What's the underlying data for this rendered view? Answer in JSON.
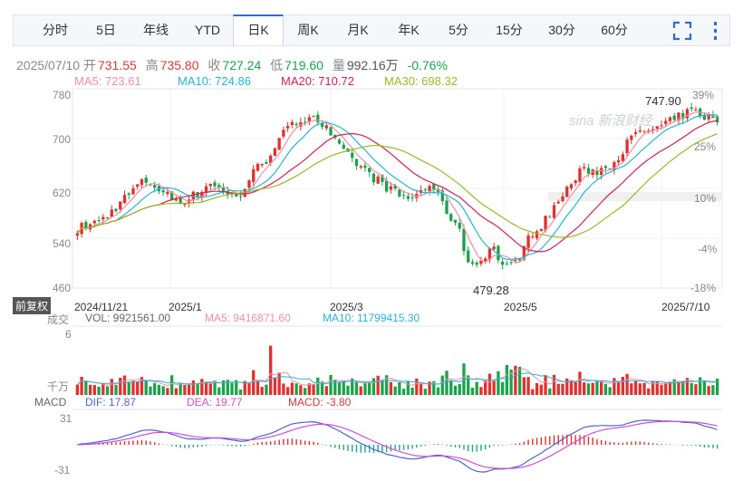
{
  "tabs": [
    "分时",
    "5日",
    "年线",
    "YTD",
    "日K",
    "周K",
    "月K",
    "年K",
    "5分",
    "15分",
    "30分",
    "60分"
  ],
  "active_tab": "日K",
  "icons": {
    "fullscreen": "fullscreen-icon",
    "menu": "more-vertical-icon"
  },
  "colors": {
    "up": "#e0312f",
    "down": "#1aa34a",
    "ma5": "#f08fa7",
    "ma10": "#26b5d6",
    "ma20": "#d81e52",
    "ma30": "#9aba22",
    "dif": "#4e62d6",
    "dea": "#d14fd6"
  },
  "quote": {
    "date": "2025/07/10",
    "open_label": "开",
    "open": "731.55",
    "high_label": "高",
    "high": "735.80",
    "close_label": "收",
    "close": "727.24",
    "low_label": "低",
    "low": "719.60",
    "vol_label": "量",
    "vol": "992.16万",
    "chg": "-0.76%"
  },
  "ma_legend": {
    "ma5": "MA5: 723.61",
    "ma10": "MA10: 724.86",
    "ma20": "MA20: 710.72",
    "ma30": "MA30: 698.32"
  },
  "fq_label": "前复权",
  "vol_legend": {
    "title": "成交",
    "vol": "VOL: 9921561.00",
    "ma5": "MA5: 9416871.60",
    "ma10": "MA10: 11799415.30"
  },
  "vol_axis": {
    "top": "6",
    "unit": "千万"
  },
  "macd_legend": {
    "title": "MACD",
    "dif": "DIF: 17.87",
    "dea": "DEA: 19.77",
    "macd": "MACD: -3.80"
  },
  "macd_axis": {
    "top": "31",
    "bottom": "-31"
  },
  "watermark": "sina 新浪财经",
  "chart_data": {
    "type": "candlestick",
    "y_ticks": [
      780,
      700,
      620,
      540,
      460
    ],
    "ylim": [
      460,
      780
    ],
    "pct_ticks": [
      "39%",
      "25%",
      "10%",
      "-4%",
      "-18%"
    ],
    "x_labels": [
      "2024/11/21",
      "2025/1",
      "2025/3",
      "2025/5",
      "2025/7/10"
    ],
    "annotations": [
      {
        "text": "747.90",
        "type": "high"
      },
      {
        "text": "479.28",
        "type": "low"
      }
    ],
    "close_series": [
      556,
      560,
      564,
      572,
      583,
      600,
      610,
      626,
      632,
      624,
      612,
      604,
      600,
      605,
      612,
      626,
      628,
      612,
      607,
      612,
      638,
      657,
      668,
      694,
      710,
      722,
      732,
      740,
      728,
      712,
      690,
      674,
      664,
      652,
      640,
      630,
      620,
      610,
      604,
      608,
      618,
      628,
      598,
      578,
      558,
      510,
      494,
      512,
      528,
      500,
      492,
      508,
      535,
      556,
      566,
      588,
      606,
      626,
      644,
      650,
      648,
      652,
      664,
      680,
      700,
      708,
      714,
      716,
      722,
      730,
      738,
      744,
      740,
      733,
      727
    ]
  }
}
